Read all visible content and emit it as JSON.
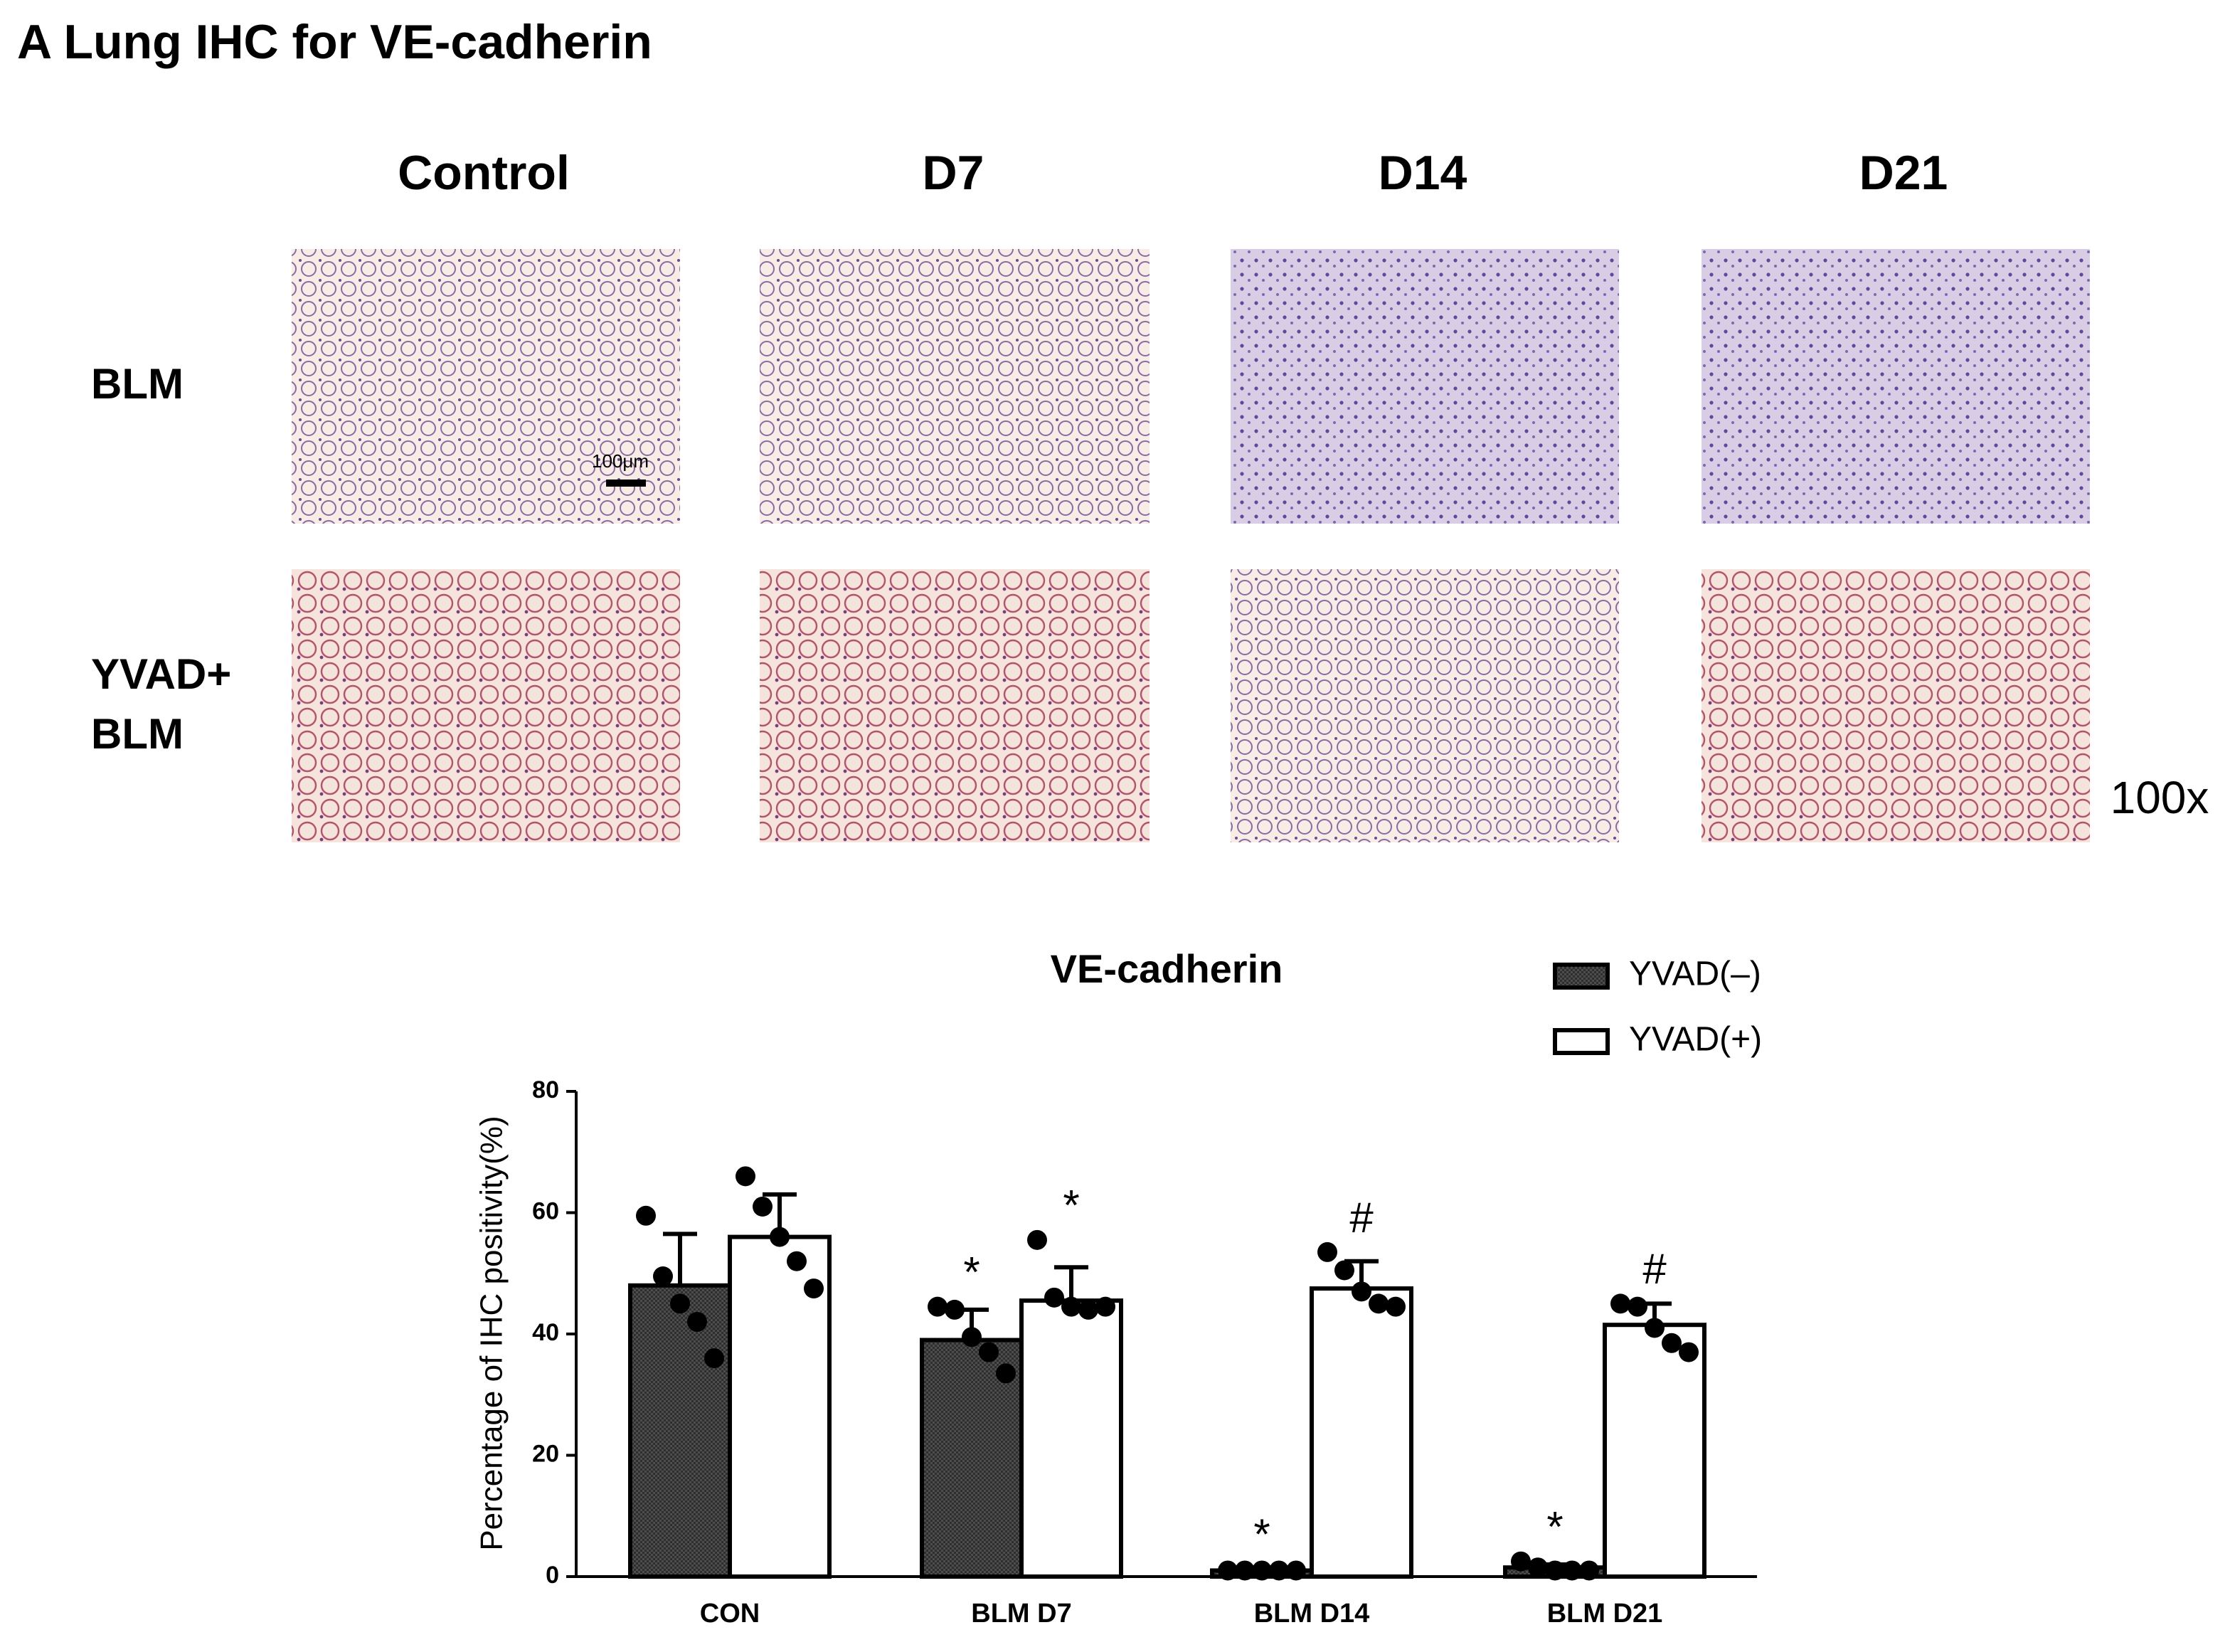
{
  "header": {
    "title": "A Lung IHC for VE-cadherin"
  },
  "micrographs": {
    "columns": [
      "Control",
      "D7",
      "D14",
      "D21"
    ],
    "rows": [
      [
        "BLM"
      ],
      [
        "YVAD+",
        "BLM"
      ]
    ],
    "scale_bar": "100μm",
    "magnification": "100x"
  },
  "chart_data": {
    "type": "bar",
    "title": "VE-cadherin",
    "y_label": "Percentage of IHC positivity(%)",
    "categories": [
      "CON",
      "BLM D7",
      "BLM D14",
      "BLM D21"
    ],
    "ylim": [
      0,
      80
    ],
    "yticks": [
      0,
      20,
      40,
      60,
      80
    ],
    "series": [
      {
        "name": "YVAD(–)",
        "color": "#4d4d4d",
        "pattern": "checker",
        "values": [
          48,
          39,
          1,
          1.5
        ],
        "errors": [
          8.5,
          5,
          0.3,
          0.5
        ],
        "points": [
          [
            59.5,
            49.5,
            45,
            42,
            36
          ],
          [
            44.5,
            44,
            39.5,
            37,
            33.5
          ],
          [
            1,
            1,
            1,
            1,
            1
          ],
          [
            2.5,
            1.5,
            1,
            1,
            1
          ]
        ],
        "annotations": [
          null,
          "*",
          "*",
          "*"
        ]
      },
      {
        "name": "YVAD(+)",
        "color": "#ffffff",
        "pattern": "none",
        "values": [
          56,
          45.5,
          47.5,
          41.5
        ],
        "errors": [
          7,
          5.5,
          4.5,
          3.5
        ],
        "points": [
          [
            66,
            61,
            56,
            52,
            47.5
          ],
          [
            55.5,
            46,
            44.5,
            44,
            44.5
          ],
          [
            53.5,
            50.5,
            47,
            45,
            44.5
          ],
          [
            45,
            44.5,
            41,
            38.5,
            37
          ]
        ],
        "annotations": [
          null,
          "*",
          "#",
          "#"
        ]
      }
    ],
    "legend": "top-right"
  }
}
